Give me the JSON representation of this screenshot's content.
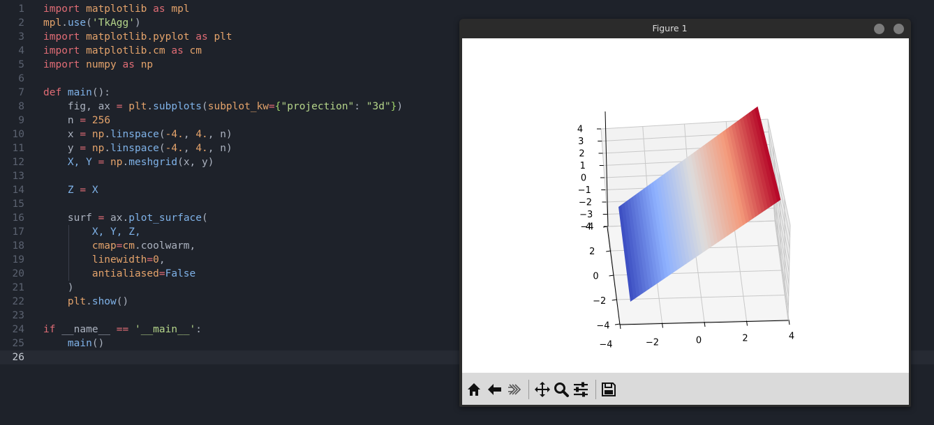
{
  "editor": {
    "active_line": 26,
    "lines": [
      {
        "n": "1",
        "tokens": [
          {
            "t": "import ",
            "c": "kw"
          },
          {
            "t": "matplotlib",
            "c": "mod"
          },
          {
            "t": " as ",
            "c": "kw"
          },
          {
            "t": "mpl",
            "c": "mod"
          }
        ]
      },
      {
        "n": "2",
        "tokens": [
          {
            "t": "mpl",
            "c": "mod"
          },
          {
            "t": ".",
            "c": "punc"
          },
          {
            "t": "use",
            "c": "fn"
          },
          {
            "t": "(",
            "c": "punc"
          },
          {
            "t": "'TkAgg'",
            "c": "str"
          },
          {
            "t": ")",
            "c": "punc"
          }
        ]
      },
      {
        "n": "3",
        "tokens": [
          {
            "t": "import ",
            "c": "kw"
          },
          {
            "t": "matplotlib.pyplot",
            "c": "mod"
          },
          {
            "t": " as ",
            "c": "kw"
          },
          {
            "t": "plt",
            "c": "mod"
          }
        ]
      },
      {
        "n": "4",
        "tokens": [
          {
            "t": "import ",
            "c": "kw"
          },
          {
            "t": "matplotlib.cm",
            "c": "mod"
          },
          {
            "t": " as ",
            "c": "kw"
          },
          {
            "t": "cm",
            "c": "mod"
          }
        ]
      },
      {
        "n": "5",
        "tokens": [
          {
            "t": "import ",
            "c": "kw"
          },
          {
            "t": "numpy",
            "c": "mod"
          },
          {
            "t": " as ",
            "c": "kw"
          },
          {
            "t": "np",
            "c": "mod"
          }
        ]
      },
      {
        "n": "6",
        "tokens": []
      },
      {
        "n": "7",
        "tokens": [
          {
            "t": "def ",
            "c": "kw"
          },
          {
            "t": "main",
            "c": "fn"
          },
          {
            "t": "():",
            "c": "punc"
          }
        ]
      },
      {
        "n": "8",
        "tokens": [
          {
            "t": "    fig, ax ",
            "c": "var"
          },
          {
            "t": "=",
            "c": "op"
          },
          {
            "t": " plt",
            "c": "mod"
          },
          {
            "t": ".",
            "c": "punc"
          },
          {
            "t": "subplots",
            "c": "fn"
          },
          {
            "t": "(",
            "c": "punc"
          },
          {
            "t": "subplot_kw",
            "c": "param"
          },
          {
            "t": "=",
            "c": "op"
          },
          {
            "t": "{",
            "c": "brace"
          },
          {
            "t": "\"projection\"",
            "c": "str"
          },
          {
            "t": ": ",
            "c": "punc"
          },
          {
            "t": "\"3d\"",
            "c": "str"
          },
          {
            "t": "}",
            "c": "brace"
          },
          {
            "t": ")",
            "c": "punc"
          }
        ]
      },
      {
        "n": "9",
        "tokens": [
          {
            "t": "    n ",
            "c": "var"
          },
          {
            "t": "=",
            "c": "op"
          },
          {
            "t": " 256",
            "c": "num"
          }
        ]
      },
      {
        "n": "10",
        "tokens": [
          {
            "t": "    x ",
            "c": "var"
          },
          {
            "t": "=",
            "c": "op"
          },
          {
            "t": " np",
            "c": "mod"
          },
          {
            "t": ".",
            "c": "punc"
          },
          {
            "t": "linspace",
            "c": "fn"
          },
          {
            "t": "(",
            "c": "punc"
          },
          {
            "t": "-4.",
            "c": "num"
          },
          {
            "t": ", ",
            "c": "punc"
          },
          {
            "t": "4.",
            "c": "num"
          },
          {
            "t": ", n)",
            "c": "var"
          }
        ]
      },
      {
        "n": "11",
        "tokens": [
          {
            "t": "    y ",
            "c": "var"
          },
          {
            "t": "=",
            "c": "op"
          },
          {
            "t": " np",
            "c": "mod"
          },
          {
            "t": ".",
            "c": "punc"
          },
          {
            "t": "linspace",
            "c": "fn"
          },
          {
            "t": "(",
            "c": "punc"
          },
          {
            "t": "-4.",
            "c": "num"
          },
          {
            "t": ", ",
            "c": "punc"
          },
          {
            "t": "4.",
            "c": "num"
          },
          {
            "t": ", n)",
            "c": "var"
          }
        ]
      },
      {
        "n": "12",
        "tokens": [
          {
            "t": "    X, Y ",
            "c": "xy"
          },
          {
            "t": "=",
            "c": "op"
          },
          {
            "t": " np",
            "c": "mod"
          },
          {
            "t": ".",
            "c": "punc"
          },
          {
            "t": "meshgrid",
            "c": "fn"
          },
          {
            "t": "(x, y)",
            "c": "var"
          }
        ]
      },
      {
        "n": "13",
        "tokens": []
      },
      {
        "n": "14",
        "tokens": [
          {
            "t": "    Z ",
            "c": "xy"
          },
          {
            "t": "=",
            "c": "op"
          },
          {
            "t": " X",
            "c": "xy"
          }
        ]
      },
      {
        "n": "15",
        "tokens": []
      },
      {
        "n": "16",
        "tokens": [
          {
            "t": "    surf ",
            "c": "var"
          },
          {
            "t": "=",
            "c": "op"
          },
          {
            "t": " ax",
            "c": "var"
          },
          {
            "t": ".",
            "c": "punc"
          },
          {
            "t": "plot_surface",
            "c": "fn"
          },
          {
            "t": "(",
            "c": "punc"
          }
        ]
      },
      {
        "n": "17",
        "tokens": [
          {
            "t": "        X, Y, Z,",
            "c": "xy"
          }
        ]
      },
      {
        "n": "18",
        "tokens": [
          {
            "t": "        cmap",
            "c": "param"
          },
          {
            "t": "=",
            "c": "op"
          },
          {
            "t": "cm",
            "c": "mod"
          },
          {
            "t": ".",
            "c": "punc"
          },
          {
            "t": "coolwarm",
            "c": "var"
          },
          {
            "t": ",",
            "c": "punc"
          }
        ]
      },
      {
        "n": "19",
        "tokens": [
          {
            "t": "        linewidth",
            "c": "param"
          },
          {
            "t": "=",
            "c": "op"
          },
          {
            "t": "0",
            "c": "num"
          },
          {
            "t": ",",
            "c": "punc"
          }
        ]
      },
      {
        "n": "20",
        "tokens": [
          {
            "t": "        antialiased",
            "c": "param"
          },
          {
            "t": "=",
            "c": "op"
          },
          {
            "t": "False",
            "c": "bool"
          }
        ]
      },
      {
        "n": "21",
        "tokens": [
          {
            "t": "    )",
            "c": "punc"
          }
        ]
      },
      {
        "n": "22",
        "tokens": [
          {
            "t": "    plt",
            "c": "mod"
          },
          {
            "t": ".",
            "c": "punc"
          },
          {
            "t": "show",
            "c": "fn"
          },
          {
            "t": "()",
            "c": "punc"
          }
        ]
      },
      {
        "n": "23",
        "tokens": []
      },
      {
        "n": "24",
        "tokens": [
          {
            "t": "if ",
            "c": "kw"
          },
          {
            "t": "__name__ ",
            "c": "var"
          },
          {
            "t": "==",
            "c": "op"
          },
          {
            "t": " ",
            "c": "var"
          },
          {
            "t": "'__main__'",
            "c": "str"
          },
          {
            "t": ":",
            "c": "punc"
          }
        ]
      },
      {
        "n": "25",
        "tokens": [
          {
            "t": "    main",
            "c": "fn"
          },
          {
            "t": "()",
            "c": "punc"
          }
        ]
      },
      {
        "n": "26",
        "tokens": []
      }
    ]
  },
  "figure_window": {
    "title": "Figure 1",
    "toolbar": {
      "buttons": [
        {
          "name": "home-icon",
          "icon": "home"
        },
        {
          "name": "back-icon",
          "icon": "back"
        },
        {
          "name": "forward-icon",
          "icon": "forward"
        },
        {
          "name": "pan-icon",
          "icon": "pan"
        },
        {
          "name": "zoom-icon",
          "icon": "zoom"
        },
        {
          "name": "configure-subplots-icon",
          "icon": "sliders"
        },
        {
          "name": "save-icon",
          "icon": "save"
        }
      ]
    }
  },
  "chart_data": {
    "type": "surface3d",
    "title": "",
    "surface": "Z = X",
    "colormap": "coolwarm",
    "colormap_colors": [
      "#3b4cc0",
      "#8db0fe",
      "#dddcdc",
      "#f49a7b",
      "#b40426"
    ],
    "x_ticks": [
      "−4",
      "−2",
      "0",
      "2",
      "4"
    ],
    "y_ticks": [
      "−4",
      "−2",
      "0",
      "2",
      "4"
    ],
    "z_ticks": [
      "−4",
      "−3",
      "−2",
      "−1",
      "0",
      "1",
      "2",
      "3",
      "4"
    ],
    "xlim": [
      -4,
      4
    ],
    "ylim": [
      -4,
      4
    ],
    "zlim": [
      -4,
      4
    ],
    "grid": true
  }
}
